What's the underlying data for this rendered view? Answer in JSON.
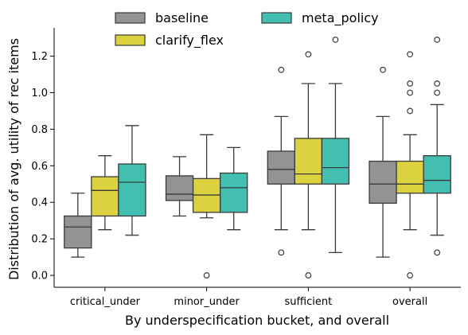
{
  "chart_data": {
    "type": "boxplot",
    "xlabel": "By underspecification bucket, and overall",
    "ylabel": "Distribution of avg. utility of rec items",
    "categories": [
      "critical_under",
      "minor_under",
      "sufficient",
      "overall"
    ],
    "ylim": [
      -0.065,
      1.355
    ],
    "yticks": [
      "0.0",
      "0.2",
      "0.4",
      "0.6",
      "0.8",
      "1.0",
      "1.2"
    ],
    "legend_position": "top-center",
    "series": [
      {
        "name": "baseline",
        "color": "#939393",
        "boxes": [
          {
            "whislo": 0.1,
            "q1": 0.15,
            "med": 0.265,
            "q3": 0.325,
            "whishi": 0.45,
            "fliers": []
          },
          {
            "whislo": 0.325,
            "q1": 0.41,
            "med": 0.445,
            "q3": 0.545,
            "whishi": 0.65,
            "fliers": []
          },
          {
            "whislo": 0.25,
            "q1": 0.5,
            "med": 0.58,
            "q3": 0.68,
            "whishi": 0.87,
            "fliers": [
              0.125,
              1.125
            ]
          },
          {
            "whislo": 0.1,
            "q1": 0.395,
            "med": 0.5,
            "q3": 0.625,
            "whishi": 0.87,
            "fliers": [
              1.125
            ]
          }
        ]
      },
      {
        "name": "clarify_flex",
        "color": "#dcd23f",
        "boxes": [
          {
            "whislo": 0.25,
            "q1": 0.325,
            "med": 0.465,
            "q3": 0.54,
            "whishi": 0.655,
            "fliers": []
          },
          {
            "whislo": 0.315,
            "q1": 0.345,
            "med": 0.44,
            "q3": 0.53,
            "whishi": 0.77,
            "fliers": [
              0.0
            ]
          },
          {
            "whislo": 0.25,
            "q1": 0.5,
            "med": 0.555,
            "q3": 0.75,
            "whishi": 1.05,
            "fliers": [
              0.0,
              1.21
            ]
          },
          {
            "whislo": 0.25,
            "q1": 0.45,
            "med": 0.5,
            "q3": 0.625,
            "whishi": 0.77,
            "fliers": [
              0.0,
              0.9,
              1.0,
              1.05,
              1.21
            ]
          }
        ]
      },
      {
        "name": "meta_policy",
        "color": "#42bfb0",
        "boxes": [
          {
            "whislo": 0.22,
            "q1": 0.325,
            "med": 0.51,
            "q3": 0.61,
            "whishi": 0.82,
            "fliers": []
          },
          {
            "whislo": 0.25,
            "q1": 0.345,
            "med": 0.48,
            "q3": 0.56,
            "whishi": 0.7,
            "fliers": []
          },
          {
            "whislo": 0.125,
            "q1": 0.5,
            "med": 0.59,
            "q3": 0.75,
            "whishi": 1.05,
            "fliers": [
              1.29
            ]
          },
          {
            "whislo": 0.22,
            "q1": 0.45,
            "med": 0.52,
            "q3": 0.655,
            "whishi": 0.935,
            "fliers": [
              0.125,
              1.0,
              1.05,
              1.29
            ]
          }
        ]
      }
    ]
  }
}
